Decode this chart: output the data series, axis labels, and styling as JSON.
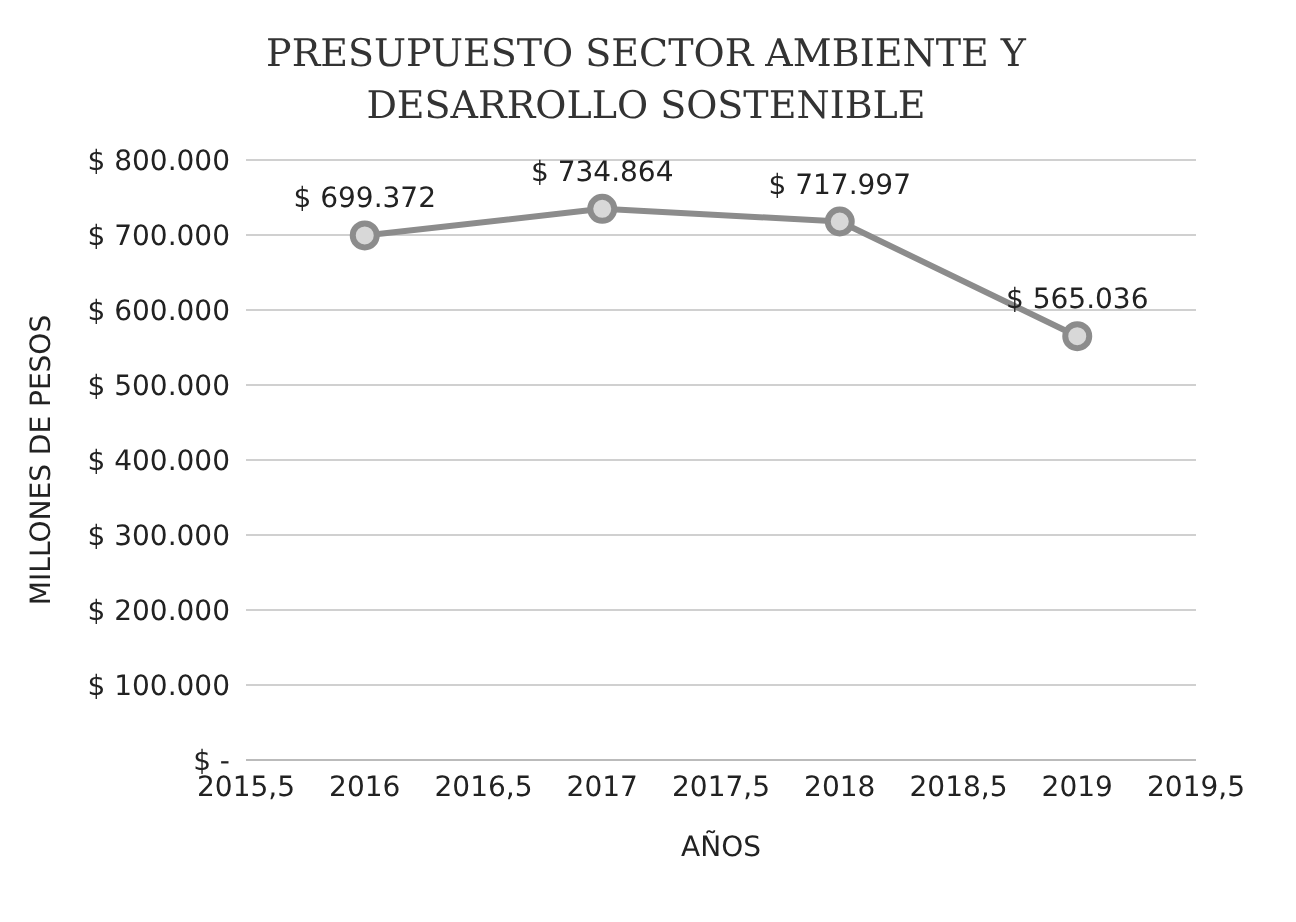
{
  "chart_data": {
    "type": "line",
    "title": "PRESUPUESTO SECTOR AMBIENTE Y DESARROLLO SOSTENIBLE",
    "xlabel": "AÑOS",
    "ylabel": "MILLONES DE PESOS",
    "x": [
      2016,
      2017,
      2018,
      2019
    ],
    "series": [
      {
        "color": "#8c8c8c",
        "values": [
          699372,
          734864,
          717997,
          565036
        ],
        "value_labels": [
          "$ 699.372",
          "$ 734.864",
          "$ 717.997",
          "$ 565.036"
        ]
      }
    ],
    "xlim": [
      2015.5,
      2019.5
    ],
    "xticks": [
      {
        "value": 2015.5,
        "label": "2015,5"
      },
      2016,
      {
        "value": 2016.5,
        "label": "2016,5"
      },
      2017,
      {
        "value": 2017.5,
        "label": "2017,5"
      },
      2018,
      {
        "value": 2018.5,
        "label": "2018,5"
      },
      2019,
      {
        "value": 2019.5,
        "label": "2019,5"
      }
    ],
    "ylim": [
      0,
      800000
    ],
    "yticks": [
      {
        "value": 0,
        "label": "$ -"
      },
      {
        "value": 100000,
        "label": "$ 100.000"
      },
      {
        "value": 200000,
        "label": "$ 200.000"
      },
      {
        "value": 300000,
        "label": "$ 300.000"
      },
      {
        "value": 400000,
        "label": "$ 400.000"
      },
      {
        "value": 500000,
        "label": "$ 500.000"
      },
      {
        "value": 600000,
        "label": "$ 600.000"
      },
      {
        "value": 700000,
        "label": "$ 700.000"
      },
      {
        "value": 800000,
        "label": "$ 800.000"
      }
    ],
    "grid": "y",
    "marker": "circle",
    "line_style": "solid",
    "legend": false
  }
}
